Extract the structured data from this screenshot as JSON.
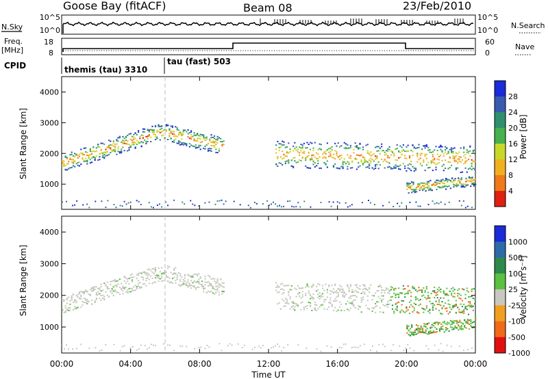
{
  "header": {
    "station": "Goose Bay (fitACF)",
    "beam": "Beam 08",
    "date": "23/Feb/2010"
  },
  "status_panel": {
    "nsky_label": "N.Sky",
    "nsky_ticks": [
      "10^5",
      "10^0"
    ],
    "nsearch_label": "N.Search",
    "nsearch_ticks": [
      "10^5",
      "10^0"
    ],
    "freq_label_1": "Freq.",
    "freq_label_2": "[MHz]",
    "freq_ticks": [
      "18",
      "8"
    ],
    "nave_label": "Nave",
    "nave_ticks": [
      "60",
      "0"
    ],
    "cpid_label": "CPID",
    "cpid_segments": [
      {
        "label": "themis (tau) 3310",
        "start_hour": 0
      },
      {
        "label": "tau (fast) 503",
        "start_hour": 6
      }
    ]
  },
  "chart_data": [
    {
      "type": "heatmap",
      "name": "power",
      "ylabel": "Slant Range [km]",
      "y_ticks": [
        "4000",
        "3000",
        "2000",
        "1000"
      ],
      "y_range": [
        180,
        4500
      ],
      "x_range_hours": [
        0,
        24
      ],
      "colorbar_label": "Power [dB]",
      "colorbar_ticks": [
        "28",
        "24",
        "20",
        "16",
        "12",
        "8",
        "4"
      ],
      "colorbar_colors": [
        "#1a2bd8",
        "#3a5ab0",
        "#2f8f6e",
        "#47b04f",
        "#c8d82a",
        "#f0b020",
        "#f07a18",
        "#e02010"
      ]
    },
    {
      "type": "heatmap",
      "name": "velocity",
      "ylabel": "Slant Range [km]",
      "y_ticks": [
        "4000",
        "3000",
        "2000",
        "1000"
      ],
      "y_range": [
        180,
        4500
      ],
      "x_range_hours": [
        0,
        24
      ],
      "xlabel": "Time UT",
      "x_ticks": [
        "00:00",
        "04:00",
        "08:00",
        "12:00",
        "16:00",
        "20:00",
        "00:00"
      ],
      "colorbar_label": "Velocity [m s⁻¹]",
      "colorbar_ticks": [
        "1000",
        "500",
        "100",
        "25",
        "-25",
        "-100",
        "-500",
        "-1000"
      ],
      "colorbar_colors": [
        "#1a2bd8",
        "#2f6aa8",
        "#2e8a4a",
        "#5cc040",
        "#c8c8c0",
        "#f0a020",
        "#f06a18",
        "#e01010"
      ]
    }
  ]
}
